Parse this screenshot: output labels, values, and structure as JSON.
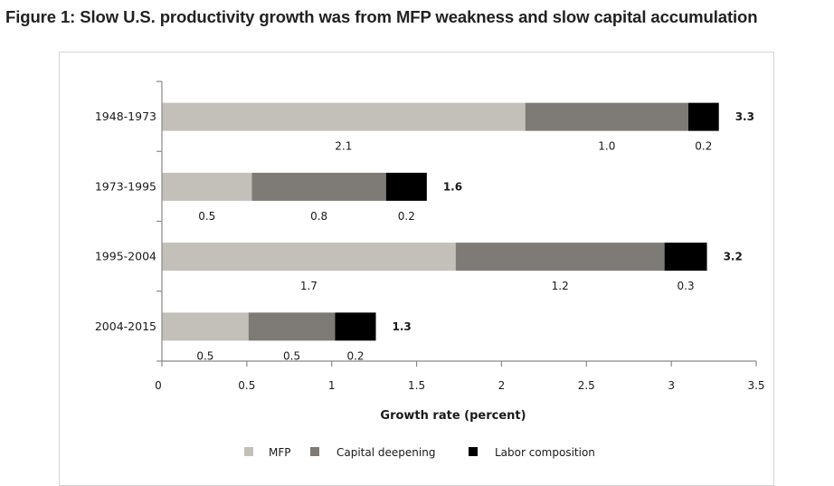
{
  "chart_data": {
    "type": "bar",
    "orientation": "horizontal",
    "stacked": true,
    "title": "Figure 1: Slow U.S. productivity growth was from MFP weakness and slow capital accumulation",
    "xlabel": "Growth rate (percent)",
    "ylabel": "",
    "xlim": [
      0,
      3.5
    ],
    "xticks": [
      "0",
      "0.5",
      "1",
      "1.5",
      "2",
      "2.5",
      "3",
      "3.5"
    ],
    "xtick_values": [
      0,
      0.5,
      1,
      1.5,
      2,
      2.5,
      3,
      3.5
    ],
    "grid": false,
    "legend_position": "bottom",
    "categories": [
      "1948-1973",
      "1973-1995",
      "1995-2004",
      "2004-2015"
    ],
    "series": [
      {
        "name": "MFP",
        "color": "#c3c0b9",
        "values": [
          2.14,
          0.53,
          1.73,
          0.51
        ],
        "labels": [
          "2.1",
          "0.5",
          "1.7",
          "0.5"
        ]
      },
      {
        "name": "Capital deepening",
        "color": "#7e7a75",
        "values": [
          0.96,
          0.79,
          1.23,
          0.51
        ],
        "labels": [
          "1.0",
          "0.8",
          "1.2",
          "0.5"
        ]
      },
      {
        "name": "Labor composition",
        "color": "#000000",
        "values": [
          0.18,
          0.24,
          0.25,
          0.24
        ],
        "labels": [
          "0.2",
          "0.2",
          "0.3",
          "0.2"
        ]
      }
    ],
    "totals": [
      "3.3",
      "1.6",
      "3.2",
      "1.3"
    ]
  }
}
